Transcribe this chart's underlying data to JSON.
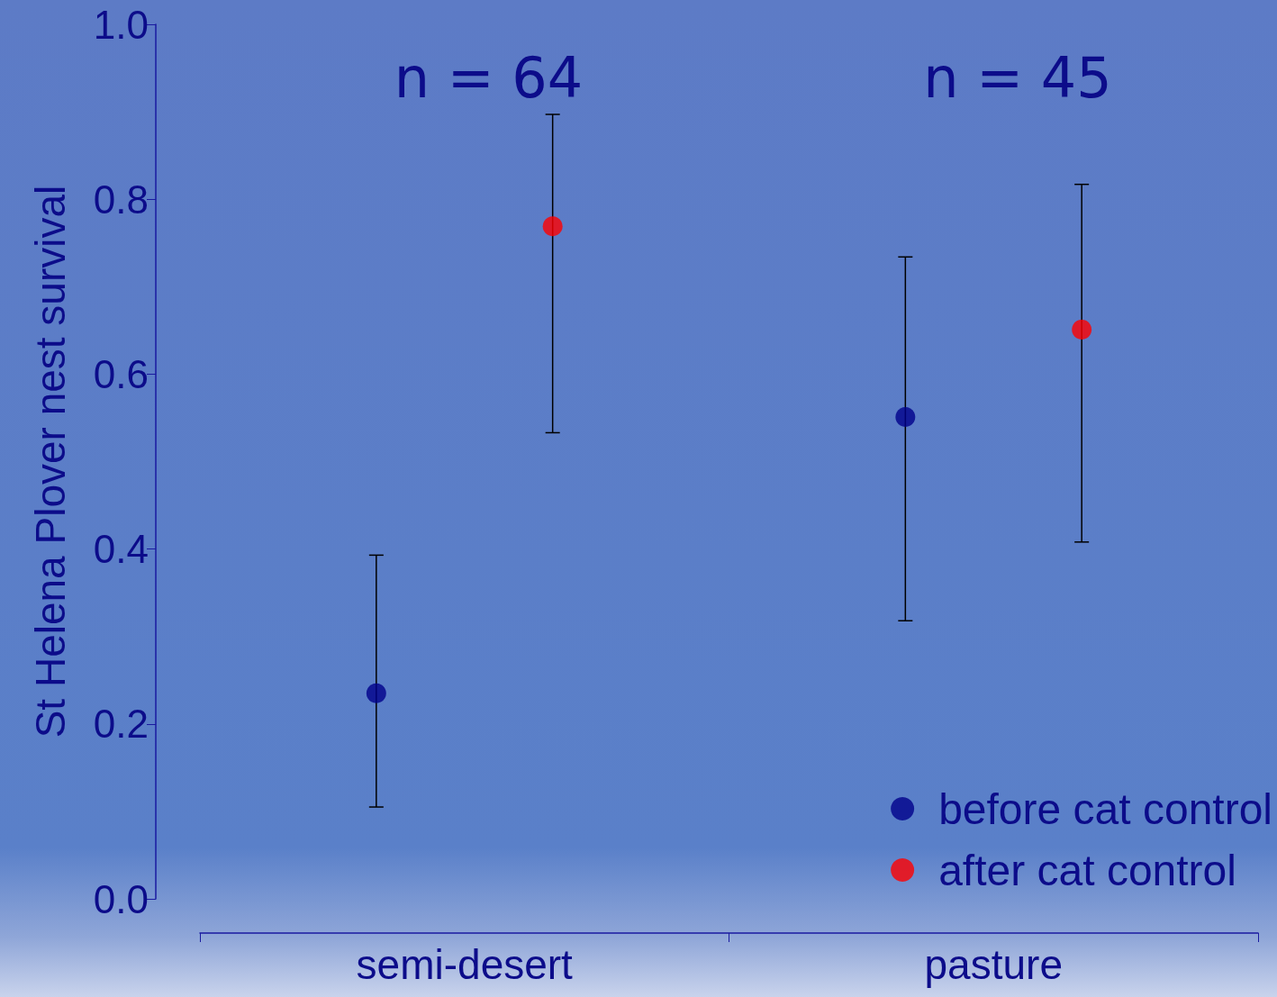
{
  "chart_data": {
    "type": "scatter",
    "ylabel": "St Helena Plover nest survival",
    "categories": [
      "semi-desert",
      "pasture"
    ],
    "ylim": [
      0,
      1
    ],
    "yticks": [
      {
        "value": 0,
        "label": "0.0"
      },
      {
        "value": 0.2,
        "label": "0.2"
      },
      {
        "value": 0.4,
        "label": "0.4"
      },
      {
        "value": 0.6,
        "label": "0.6"
      },
      {
        "value": 0.8,
        "label": "0.8"
      },
      {
        "value": 1,
        "label": "1.0"
      }
    ],
    "series": [
      {
        "name": "before cat control",
        "color": "#00008b",
        "values": [
          0.235,
          0.551
        ],
        "errors": [
          [
            0.105,
            0.393
          ],
          [
            0.318,
            0.734
          ]
        ]
      },
      {
        "name": "after cat control",
        "color": "#ff0000",
        "values": [
          0.769,
          0.651
        ],
        "errors": [
          [
            0.533,
            0.897
          ],
          [
            0.408,
            0.817
          ]
        ]
      }
    ],
    "annotations": [
      "n = 64",
      "n = 45"
    ],
    "marker": "circle",
    "grid": false,
    "legend": "bottom right"
  }
}
